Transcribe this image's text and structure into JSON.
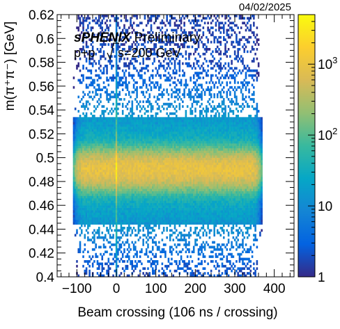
{
  "chart_data": {
    "type": "heatmap",
    "date_stamp": "04/02/2025",
    "title_bold": "sPHENIX",
    "title_rest": " Preliminary",
    "collision": "p+p",
    "energy": "s=200 GeV",
    "xlabel": "Beam crossing (106 ns / crossing)",
    "ylabel": "m(π⁺π⁻) [GeV]",
    "xlim": [
      -150,
      450
    ],
    "ylim": [
      0.4,
      0.62
    ],
    "x_ticks": [
      -100,
      0,
      100,
      200,
      300,
      400
    ],
    "y_ticks": [
      0.4,
      0.42,
      0.44,
      0.46,
      0.48,
      0.5,
      0.52,
      0.54,
      0.56,
      0.58,
      0.6,
      0.62
    ],
    "y_tick_labels": [
      "0.4",
      "0.42",
      "0.44",
      "0.46",
      "0.48",
      "0.5",
      "0.52",
      "0.54",
      "0.56",
      "0.58",
      "0.6",
      "0.62"
    ],
    "x_tick_labels": [
      "−100",
      "0",
      "100",
      "200",
      "300",
      "400"
    ],
    "colorbar": {
      "scale": "log",
      "range": [
        1,
        5000
      ],
      "ticks": [
        {
          "value": 1,
          "label": "1"
        },
        {
          "value": 10,
          "label": "10"
        },
        {
          "value": 100,
          "label": "10",
          "sup": "2"
        },
        {
          "value": 1000,
          "label": "10",
          "sup": "3"
        }
      ],
      "colors": [
        "#352a87",
        "#0363e1",
        "#1485d4",
        "#06a7c6",
        "#38b99e",
        "#92bf73",
        "#d9ba56",
        "#fcce2e",
        "#f9fb0e"
      ]
    },
    "distribution": {
      "x_extent": [
        -110,
        370
      ],
      "peak_mass": 0.49,
      "mass_sigma": 0.0085,
      "band_counts_per_bin": 900,
      "background_counts_per_bin": 1.6,
      "bin_width_x": 4,
      "bin_width_y": 0.002,
      "spike_x": 0,
      "spike_factor": 4
    }
  }
}
